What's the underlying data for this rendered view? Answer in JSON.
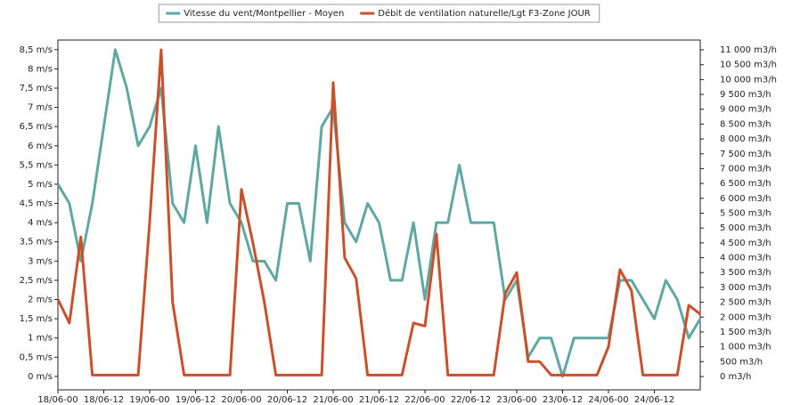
{
  "chart_data": {
    "type": "line",
    "x": [
      0,
      3,
      6,
      9,
      12,
      15,
      18,
      21,
      24,
      27,
      30,
      33,
      36,
      39,
      42,
      45,
      48,
      51,
      54,
      57,
      60,
      63,
      66,
      69,
      72,
      75,
      78,
      81,
      84,
      87,
      90,
      93,
      96,
      99,
      102,
      105,
      108,
      111,
      114,
      117,
      120,
      123,
      126,
      129,
      132,
      135,
      138,
      141,
      144,
      147,
      150,
      153,
      156,
      159,
      162,
      165,
      168
    ],
    "series": [
      {
        "name": "Vitesse du vent/Montpellier - Moyen",
        "color": "#5fa8a2",
        "values": [
          5.0,
          4.5,
          3.0,
          4.5,
          6.5,
          8.5,
          7.5,
          6.0,
          6.5,
          7.5,
          4.5,
          4.0,
          6.0,
          4.0,
          6.5,
          4.5,
          4.0,
          3.0,
          3.0,
          2.5,
          4.5,
          4.5,
          3.0,
          6.5,
          7.0,
          4.0,
          3.5,
          4.5,
          4.0,
          2.5,
          2.5,
          4.0,
          2.0,
          4.0,
          4.0,
          5.5,
          4.0,
          4.0,
          4.0,
          2.0,
          2.5,
          0.5,
          1.0,
          1.0,
          0.0,
          1.0,
          1.0,
          1.0,
          1.0,
          2.5,
          2.5,
          2.0,
          1.5,
          2.5,
          2.0,
          1.0,
          1.5
        ]
      },
      {
        "name": "Débit de ventilation naturelle/Lgt F3-Zone JOUR",
        "color": "#c9502a",
        "axis": "y2",
        "values": [
          2600,
          1800,
          4700,
          50,
          50,
          50,
          50,
          50,
          5200,
          11000,
          2500,
          50,
          50,
          50,
          50,
          50,
          6300,
          4500,
          2500,
          50,
          50,
          50,
          50,
          50,
          9900,
          4000,
          3300,
          50,
          50,
          50,
          50,
          1800,
          1700,
          4800,
          50,
          50,
          50,
          50,
          50,
          2800,
          3500,
          500,
          500,
          50,
          50,
          50,
          50,
          50,
          1000,
          3600,
          2900,
          50,
          50,
          50,
          50,
          2400,
          2100
        ]
      }
    ],
    "xlim": [
      0,
      168
    ],
    "xticks": [
      {
        "value": 0,
        "label": "18/06-00"
      },
      {
        "value": 12,
        "label": "18/06-12"
      },
      {
        "value": 24,
        "label": "19/06-00"
      },
      {
        "value": 36,
        "label": "19/06-12"
      },
      {
        "value": 48,
        "label": "20/06-00"
      },
      {
        "value": 60,
        "label": "20/06-12"
      },
      {
        "value": 72,
        "label": "21/06-00"
      },
      {
        "value": 84,
        "label": "21/06-12"
      },
      {
        "value": 96,
        "label": "22/06-00"
      },
      {
        "value": 108,
        "label": "22/06-12"
      },
      {
        "value": 120,
        "label": "23/06-00"
      },
      {
        "value": 132,
        "label": "23/06-12"
      },
      {
        "value": 144,
        "label": "24/06-00"
      },
      {
        "value": 156,
        "label": "24/06-12"
      }
    ],
    "ylim": [
      -0.35,
      8.75
    ],
    "yticks": [
      {
        "value": 0,
        "label": "0 m/s"
      },
      {
        "value": 0.5,
        "label": "0,5 m/s"
      },
      {
        "value": 1,
        "label": "1 m/s"
      },
      {
        "value": 1.5,
        "label": "1,5 m/s"
      },
      {
        "value": 2,
        "label": "2 m/s"
      },
      {
        "value": 2.5,
        "label": "2,5 m/s"
      },
      {
        "value": 3,
        "label": "3 m/s"
      },
      {
        "value": 3.5,
        "label": "3,5 m/s"
      },
      {
        "value": 4,
        "label": "4 m/s"
      },
      {
        "value": 4.5,
        "label": "4,5 m/s"
      },
      {
        "value": 5,
        "label": "5 m/s"
      },
      {
        "value": 5.5,
        "label": "5,5 m/s"
      },
      {
        "value": 6,
        "label": "6 m/s"
      },
      {
        "value": 6.5,
        "label": "6,5 m/s"
      },
      {
        "value": 7,
        "label": "7 m/s"
      },
      {
        "value": 7.5,
        "label": "7,5 m/s"
      },
      {
        "value": 8,
        "label": "8 m/s"
      },
      {
        "value": 8.5,
        "label": "8,5 m/s"
      }
    ],
    "y2lim": [
      -450,
      11330
    ],
    "y2ticks": [
      {
        "value": 0,
        "label": "0 m3/h"
      },
      {
        "value": 500,
        "label": "500 m3/h"
      },
      {
        "value": 1000,
        "label": "1 000 m3/h"
      },
      {
        "value": 1500,
        "label": "1 500 m3/h"
      },
      {
        "value": 2000,
        "label": "2 000 m3/h"
      },
      {
        "value": 2500,
        "label": "2 500 m3/h"
      },
      {
        "value": 3000,
        "label": "3 000 m3/h"
      },
      {
        "value": 3500,
        "label": "3 500 m3/h"
      },
      {
        "value": 4000,
        "label": "4 000 m3/h"
      },
      {
        "value": 4500,
        "label": "4 500 m3/h"
      },
      {
        "value": 5000,
        "label": "5 000 m3/h"
      },
      {
        "value": 5500,
        "label": "5 500 m3/h"
      },
      {
        "value": 6000,
        "label": "6 000 m3/h"
      },
      {
        "value": 6500,
        "label": "6 500 m3/h"
      },
      {
        "value": 7000,
        "label": "7 000 m3/h"
      },
      {
        "value": 7500,
        "label": "7 500 m3/h"
      },
      {
        "value": 8000,
        "label": "8 000 m3/h"
      },
      {
        "value": 8500,
        "label": "8 500 m3/h"
      },
      {
        "value": 9000,
        "label": "9 000 m3/h"
      },
      {
        "value": 9500,
        "label": "9 500 m3/h"
      },
      {
        "value": 10000,
        "label": "10 000 m3/h"
      },
      {
        "value": 10500,
        "label": "10 500 m3/h"
      },
      {
        "value": 11000,
        "label": "11 000 m3/h"
      }
    ],
    "legend": "top"
  }
}
